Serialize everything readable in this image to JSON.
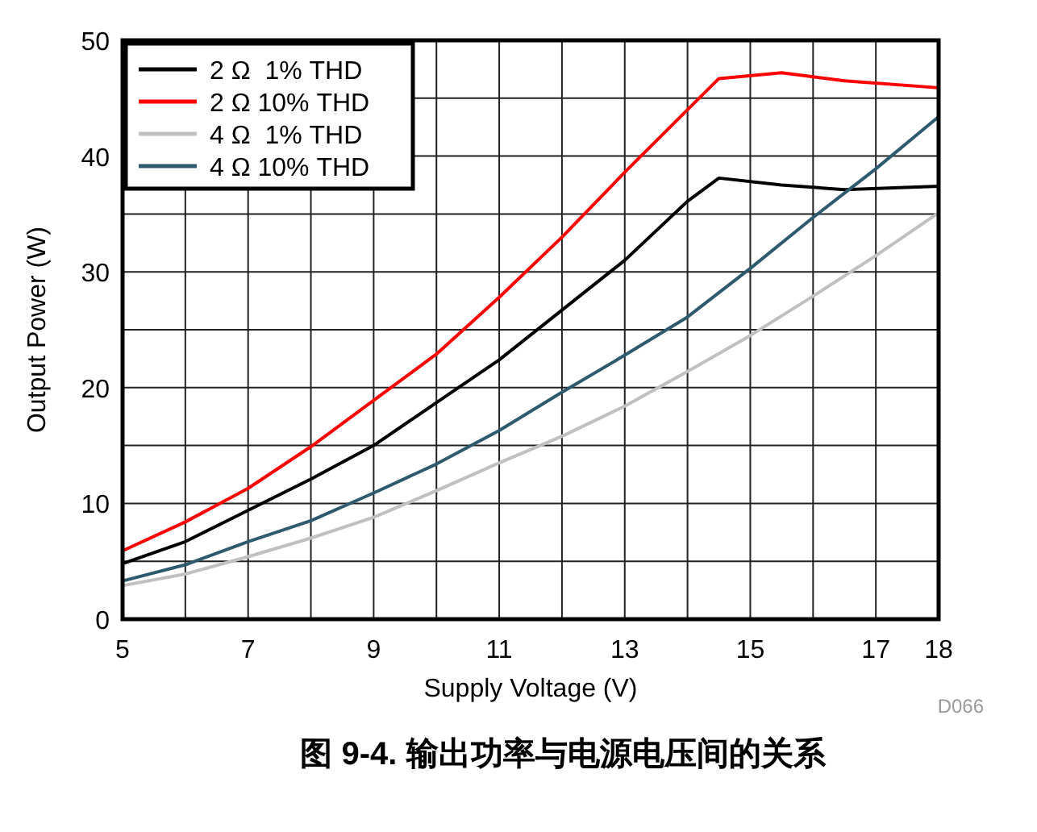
{
  "chart_data": {
    "type": "line",
    "xlabel": "Supply Voltage (V)",
    "ylabel": "Output Power (W)",
    "title": "图 9-4. 输出功率与电源电压间的关系",
    "annotations": [
      "D066"
    ],
    "xlim": [
      5,
      18
    ],
    "xticks": [
      5,
      7,
      9,
      11,
      13,
      15,
      17,
      18
    ],
    "ylim": [
      0,
      50
    ],
    "yticks": [
      0,
      10,
      20,
      30,
      40,
      50
    ],
    "grid": true,
    "legend": "top left",
    "line_style": "solid",
    "marker": "none",
    "series": [
      {
        "name": "2 Ω  1% THD",
        "color": "#000000",
        "x": [
          5,
          6,
          7,
          8,
          9,
          10,
          11,
          12,
          13,
          14,
          14.5,
          15.5,
          16.5,
          18
        ],
        "values": [
          4.8,
          6.7,
          9.4,
          12.1,
          15,
          18.7,
          22.4,
          26.7,
          31,
          36.1,
          38.1,
          37.5,
          37.1,
          37.4
        ]
      },
      {
        "name": "2 Ω 10% THD",
        "color": "#ff0000",
        "x": [
          5,
          6,
          7,
          8,
          9,
          10,
          11,
          12,
          13,
          14,
          14.5,
          15.5,
          16.5,
          18
        ],
        "values": [
          5.9,
          8.4,
          11.3,
          14.9,
          18.9,
          22.9,
          27.8,
          33,
          38.6,
          44,
          46.7,
          47.2,
          46.5,
          45.9
        ]
      },
      {
        "name": "4 Ω  1% THD",
        "color": "#c0c0c0",
        "x": [
          5,
          6,
          7,
          8,
          9,
          10,
          11,
          12,
          13,
          14,
          15,
          16,
          17,
          18
        ],
        "values": [
          2.9,
          3.9,
          5.4,
          7,
          8.8,
          11.1,
          13.5,
          15.8,
          18.4,
          21.4,
          24.5,
          27.9,
          31.4,
          35.1
        ]
      },
      {
        "name": "4 Ω 10% THD",
        "color": "#2e5a70",
        "x": [
          5,
          6,
          7,
          8,
          9,
          10,
          11,
          12,
          13,
          14,
          15,
          16,
          17,
          18
        ],
        "values": [
          3.3,
          4.7,
          6.7,
          8.5,
          10.9,
          13.4,
          16.3,
          19.6,
          22.8,
          26.1,
          30.3,
          34.7,
          38.9,
          43.4
        ]
      }
    ]
  }
}
